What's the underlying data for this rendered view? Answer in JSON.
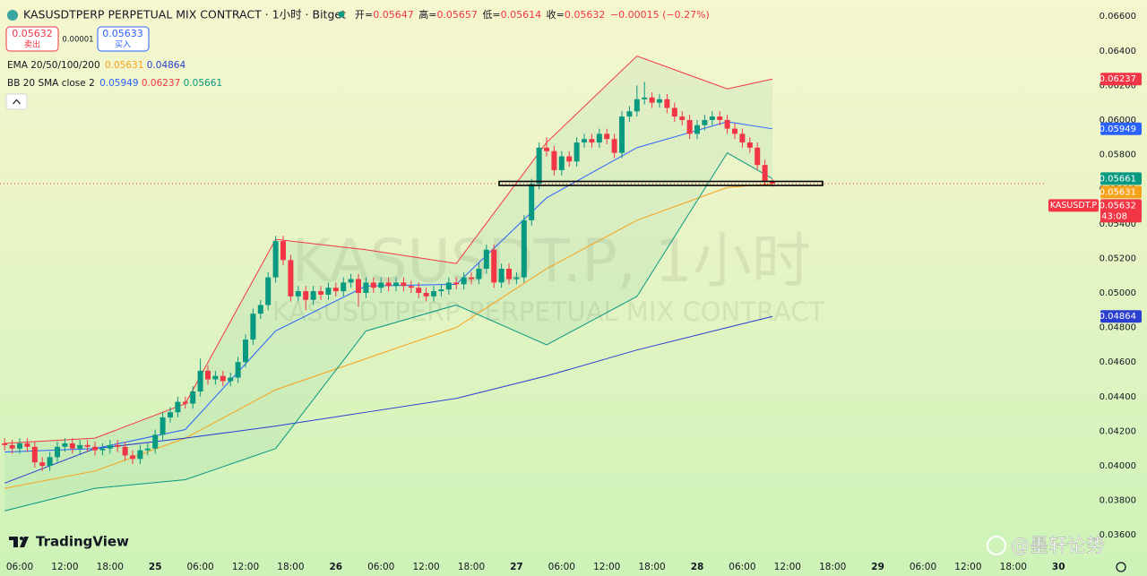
{
  "symbol_title": "KASUSDTPERP PERPETUAL MIX CONTRACT · 1小时 · Bitget",
  "ohlc_labels": [
    "开=",
    "高=",
    "低=",
    "收="
  ],
  "change": "−0.00015 (−0.27%)",
  "trade": {
    "sell_label": "卖出",
    "buy_label": "买入",
    "buy_price": 0.05633,
    "spread": 1e-05
  },
  "symbol_tag": "KASUSDT.P",
  "countdown": "43:08",
  "watermark": "KASUSDT.P, 1小时",
  "watermark_sub": "KASUSDTPERP PERPETUAL MIX CONTRACT",
  "logo": "TradingView",
  "credit": "@墨轩论势",
  "chart_data": {
    "type": "candlestick",
    "up_color": "#089981",
    "down_color": "#f23645",
    "x": [
      4,
      5,
      6,
      7,
      8,
      9,
      10,
      11,
      12,
      13,
      14,
      15,
      16,
      17,
      18,
      19,
      20,
      21,
      22,
      23,
      24,
      25,
      26,
      27,
      28,
      29,
      30,
      31,
      32,
      33,
      34,
      35,
      36,
      37,
      38,
      39,
      40,
      41,
      42,
      43,
      44,
      45,
      46,
      47,
      48,
      49,
      50,
      51,
      52,
      53,
      54,
      55,
      56,
      57,
      58,
      59,
      60,
      61,
      62,
      63,
      64,
      65,
      66,
      67,
      68,
      69,
      70,
      71,
      72,
      73,
      74,
      75,
      76,
      77,
      78,
      79,
      80,
      81,
      82,
      83,
      84,
      85,
      86,
      87,
      88,
      89,
      90,
      91,
      92,
      93,
      94,
      95,
      96,
      97,
      98,
      99,
      100,
      101,
      102,
      103,
      104,
      105,
      106
    ],
    "open": [
      0.0413,
      0.0412,
      0.041,
      0.0413,
      0.0411,
      0.0402,
      0.04,
      0.0405,
      0.0411,
      0.0413,
      0.041,
      0.0412,
      0.0411,
      0.0409,
      0.041,
      0.0412,
      0.0411,
      0.0406,
      0.0404,
      0.0409,
      0.041,
      0.0418,
      0.0428,
      0.0431,
      0.0437,
      0.0436,
      0.0443,
      0.0455,
      0.045,
      0.0452,
      0.0449,
      0.0451,
      0.046,
      0.0473,
      0.0488,
      0.0493,
      0.0509,
      0.053,
      0.0519,
      0.0498,
      0.0501,
      0.0496,
      0.0501,
      0.0499,
      0.0503,
      0.0501,
      0.0506,
      0.0508,
      0.05,
      0.0506,
      0.0503,
      0.0506,
      0.0504,
      0.0506,
      0.0504,
      0.0503,
      0.05,
      0.0498,
      0.0501,
      0.0502,
      0.0506,
      0.0505,
      0.0509,
      0.0508,
      0.0514,
      0.0525,
      0.0506,
      0.0514,
      0.0508,
      0.0509,
      0.0542,
      0.0563,
      0.0584,
      0.0582,
      0.0571,
      0.0579,
      0.0576,
      0.0587,
      0.0589,
      0.0587,
      0.0592,
      0.0589,
      0.0581,
      0.0602,
      0.0605,
      0.0612,
      0.0613,
      0.061,
      0.0612,
      0.0607,
      0.0602,
      0.06,
      0.0592,
      0.0597,
      0.06,
      0.0602,
      0.06,
      0.0595,
      0.0592,
      0.0587,
      0.0584,
      0.0574,
      0.05647
    ],
    "high": [
      0.0416,
      0.0415,
      0.0416,
      0.0416,
      0.0414,
      0.0405,
      0.0408,
      0.0414,
      0.0416,
      0.0416,
      0.0415,
      0.0415,
      0.0414,
      0.0413,
      0.0415,
      0.0415,
      0.0414,
      0.0409,
      0.0412,
      0.0413,
      0.0421,
      0.0431,
      0.0434,
      0.044,
      0.044,
      0.0446,
      0.0462,
      0.0458,
      0.0455,
      0.0455,
      0.0454,
      0.0463,
      0.0476,
      0.0491,
      0.0496,
      0.0512,
      0.0533,
      0.0533,
      0.0522,
      0.0504,
      0.0504,
      0.0504,
      0.0504,
      0.0506,
      0.0506,
      0.0509,
      0.0511,
      0.0511,
      0.0509,
      0.0509,
      0.0509,
      0.0509,
      0.0509,
      0.0509,
      0.0507,
      0.0506,
      0.0503,
      0.0504,
      0.0505,
      0.0509,
      0.0509,
      0.0512,
      0.0512,
      0.0517,
      0.0528,
      0.0528,
      0.0517,
      0.0517,
      0.0512,
      0.0545,
      0.0566,
      0.0587,
      0.059,
      0.0585,
      0.0582,
      0.0582,
      0.059,
      0.0592,
      0.0592,
      0.0595,
      0.0595,
      0.0592,
      0.0605,
      0.0608,
      0.062,
      0.0622,
      0.0616,
      0.0615,
      0.0615,
      0.061,
      0.0605,
      0.0603,
      0.06,
      0.0603,
      0.0605,
      0.0605,
      0.0603,
      0.0598,
      0.0595,
      0.059,
      0.0587,
      0.0577,
      0.05657
    ],
    "low": [
      0.0409,
      0.0407,
      0.0407,
      0.0408,
      0.0399,
      0.0397,
      0.0397,
      0.0402,
      0.0408,
      0.0407,
      0.0407,
      0.0408,
      0.0406,
      0.0406,
      0.0407,
      0.0408,
      0.0403,
      0.0401,
      0.0401,
      0.0406,
      0.0407,
      0.0415,
      0.0425,
      0.0428,
      0.0433,
      0.0433,
      0.044,
      0.0447,
      0.0447,
      0.0446,
      0.0446,
      0.0448,
      0.0457,
      0.047,
      0.0485,
      0.049,
      0.0506,
      0.0516,
      0.0495,
      0.0495,
      0.049,
      0.0493,
      0.0496,
      0.0496,
      0.0498,
      0.0498,
      0.0503,
      0.0492,
      0.0497,
      0.05,
      0.05,
      0.0501,
      0.0501,
      0.0501,
      0.05,
      0.0497,
      0.0495,
      0.0495,
      0.0498,
      0.0499,
      0.0502,
      0.0502,
      0.0505,
      0.0505,
      0.0511,
      0.0503,
      0.0503,
      0.0505,
      0.0505,
      0.0506,
      0.0539,
      0.056,
      0.0579,
      0.0568,
      0.0568,
      0.0573,
      0.0573,
      0.0584,
      0.0584,
      0.0584,
      0.0586,
      0.0578,
      0.0578,
      0.0599,
      0.0602,
      0.0609,
      0.0607,
      0.0607,
      0.0604,
      0.0599,
      0.0597,
      0.0589,
      0.0589,
      0.0594,
      0.0597,
      0.0597,
      0.0592,
      0.0589,
      0.0584,
      0.0581,
      0.0571,
      0.0562,
      0.05614
    ],
    "close": [
      0.0412,
      0.041,
      0.0413,
      0.0411,
      0.0402,
      0.04,
      0.0405,
      0.0411,
      0.0413,
      0.041,
      0.0412,
      0.0411,
      0.0409,
      0.041,
      0.0412,
      0.0411,
      0.0406,
      0.0404,
      0.0409,
      0.041,
      0.0418,
      0.0428,
      0.0431,
      0.0437,
      0.0436,
      0.0443,
      0.0455,
      0.045,
      0.0452,
      0.0449,
      0.0451,
      0.046,
      0.0473,
      0.0488,
      0.0493,
      0.0509,
      0.053,
      0.0519,
      0.0498,
      0.0501,
      0.0496,
      0.0501,
      0.0499,
      0.0503,
      0.0501,
      0.0506,
      0.0508,
      0.05,
      0.0506,
      0.0503,
      0.0506,
      0.0504,
      0.0506,
      0.0504,
      0.0503,
      0.05,
      0.0498,
      0.0501,
      0.0502,
      0.0506,
      0.0505,
      0.0509,
      0.0508,
      0.0514,
      0.0525,
      0.0506,
      0.0514,
      0.0508,
      0.0509,
      0.0542,
      0.0563,
      0.0584,
      0.0582,
      0.0571,
      0.0579,
      0.0576,
      0.0587,
      0.0589,
      0.0587,
      0.0592,
      0.0589,
      0.0581,
      0.0602,
      0.0605,
      0.0612,
      0.0613,
      0.061,
      0.0612,
      0.0607,
      0.0602,
      0.06,
      0.0592,
      0.0597,
      0.06,
      0.0602,
      0.06,
      0.0595,
      0.0592,
      0.0587,
      0.0584,
      0.0574,
      0.05647,
      0.05632
    ],
    "indicators": [
      {
        "title": "EMA 20/50/100/200",
        "x": [
          4,
          16,
          28,
          40,
          52,
          64,
          76,
          88,
          100,
          106
        ],
        "series": [
          {
            "color": "#f7a21b",
            "values": [
              0.0387,
              0.0397,
              0.0416,
              0.0444,
              0.0462,
              0.048,
              0.0514,
              0.0542,
              0.0561,
              0.05631
            ]
          },
          {
            "color": "#2a3fd0",
            "values": [
              0.039,
              0.041,
              0.0416,
              0.0423,
              0.0431,
              0.0439,
              0.0452,
              0.0467,
              0.048,
              0.04864
            ]
          }
        ]
      },
      {
        "title": "BB 20 SMA close 2",
        "x": [
          4,
          16,
          28,
          40,
          52,
          64,
          76,
          88,
          100,
          106
        ],
        "series": [
          {
            "color": "#2962ff",
            "values": [
              0.0408,
              0.041,
              0.0421,
              0.0478,
              0.0504,
              0.0505,
              0.0555,
              0.0584,
              0.0599,
              0.05949
            ]
          },
          {
            "color": "#f23645",
            "values": [
              0.0413,
              0.0416,
              0.0436,
              0.0531,
              0.0525,
              0.0517,
              0.0587,
              0.0637,
              0.0618,
              0.06237
            ]
          },
          {
            "color": "#089981",
            "values": [
              0.0374,
              0.0387,
              0.0392,
              0.041,
              0.0478,
              0.0493,
              0.047,
              0.0498,
              0.0581,
              0.05661
            ]
          }
        ]
      }
    ],
    "xlim": [
      3.38,
      155.76
    ],
    "xticks": [
      {
        "value": 6,
        "label": "06:00"
      },
      {
        "value": 12,
        "label": "12:00"
      },
      {
        "value": 18,
        "label": "18:00"
      },
      {
        "value": 24,
        "label": "25"
      },
      {
        "value": 30,
        "label": "06:00"
      },
      {
        "value": 36,
        "label": "12:00"
      },
      {
        "value": 42,
        "label": "18:00"
      },
      {
        "value": 48,
        "label": "26"
      },
      {
        "value": 54,
        "label": "06:00"
      },
      {
        "value": 60,
        "label": "12:00"
      },
      {
        "value": 66,
        "label": "18:00"
      },
      {
        "value": 72,
        "label": "27"
      },
      {
        "value": 78,
        "label": "06:00"
      },
      {
        "value": 84,
        "label": "12:00"
      },
      {
        "value": 90,
        "label": "18:00"
      },
      {
        "value": 96,
        "label": "28"
      },
      {
        "value": 102,
        "label": "06:00"
      },
      {
        "value": 108,
        "label": "12:00"
      },
      {
        "value": 114,
        "label": "18:00"
      },
      {
        "value": 120,
        "label": "29"
      },
      {
        "value": 126,
        "label": "06:00"
      },
      {
        "value": 132,
        "label": "12:00"
      },
      {
        "value": 138,
        "label": "18:00"
      },
      {
        "value": 144,
        "label": "30"
      }
    ],
    "ylim": [
      0.03508,
      0.06694
    ],
    "yticks": [
      {
        "value": 0.066,
        "label": "0.06600"
      },
      {
        "value": 0.064,
        "label": "0.06400"
      },
      {
        "value": 0.062,
        "label": "0.06200"
      },
      {
        "value": 0.06,
        "label": "0.06000"
      },
      {
        "value": 0.058,
        "label": "0.05800"
      },
      {
        "value": 0.056,
        "label": "0.05600"
      },
      {
        "value": 0.054,
        "label": "0.05400"
      },
      {
        "value": 0.052,
        "label": "0.05200"
      },
      {
        "value": 0.05,
        "label": "0.05000"
      },
      {
        "value": 0.048,
        "label": "0.04800"
      },
      {
        "value": 0.046,
        "label": "0.04600"
      },
      {
        "value": 0.044,
        "label": "0.04400"
      },
      {
        "value": 0.042,
        "label": "0.04200"
      },
      {
        "value": 0.04,
        "label": "0.04000"
      },
      {
        "value": 0.038,
        "label": "0.03800"
      },
      {
        "value": 0.036,
        "label": "0.03600"
      }
    ],
    "grid": false
  }
}
